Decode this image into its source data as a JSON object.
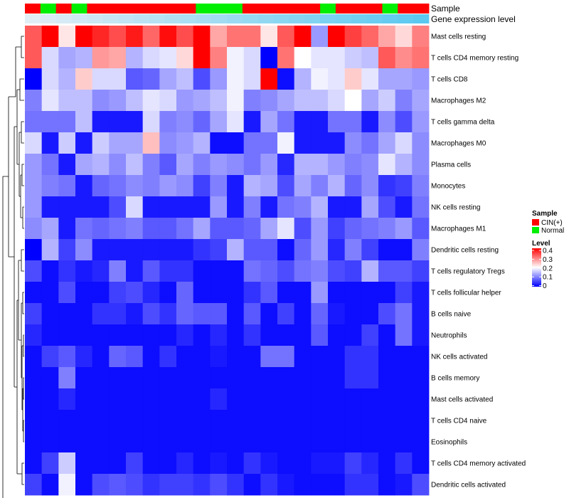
{
  "chart_data": {
    "type": "heatmap",
    "title": "",
    "colors": {
      "low": "#0000ff",
      "mid": "#ffffff",
      "high": "#ff0000",
      "sample_cin": "#ff0000",
      "sample_normal": "#00ee00",
      "gene_expr": "#5bc8f0"
    },
    "annotation_labels": {
      "sample": "Sample",
      "gene_expression": "Gene expression level"
    },
    "sample_groups": [
      "CIN(+)",
      "Normal",
      "CIN(+)",
      "Normal",
      "CIN(+)",
      "CIN(+)",
      "CIN(+)",
      "CIN(+)",
      "CIN(+)",
      "CIN(+)",
      "CIN(+)",
      "Normal",
      "Normal",
      "Normal",
      "CIN(+)",
      "CIN(+)",
      "CIN(+)",
      "CIN(+)",
      "CIN(+)",
      "Normal",
      "CIN(+)",
      "CIN(+)",
      "CIN(+)",
      "Normal",
      "CIN(+)",
      "CIN(+)"
    ],
    "gene_expression_level": [
      0.0,
      0.04,
      0.08,
      0.12,
      0.16,
      0.2,
      0.24,
      0.28,
      0.32,
      0.36,
      0.4,
      0.44,
      0.48,
      0.52,
      0.56,
      0.6,
      0.64,
      0.68,
      0.72,
      0.76,
      0.8,
      0.84,
      0.88,
      0.92,
      0.96,
      1.0
    ],
    "rows": [
      "Mast cells resting",
      "T cells CD4 memory resting",
      "T cells CD8",
      "Macrophages M2",
      "T cells gamma delta",
      "Macrophages M0",
      "Plasma cells",
      "Monocytes",
      "NK cells resting",
      "Macrophages M1",
      "Dendritic cells resting",
      "T cells regulatory  Tregs",
      "T cells follicular helper",
      "B cells naive",
      "Neutrophils",
      "NK cells activated",
      "B cells memory",
      "Mast cells activated",
      "T cells CD4 naive",
      "Eosinophils",
      "T cells CD4 memory activated",
      "Dendritic cells activated"
    ],
    "values": [
      [
        0.33,
        0.4,
        0.22,
        0.4,
        0.37,
        0.34,
        0.38,
        0.32,
        0.39,
        0.34,
        0.4,
        0.27,
        0.31,
        0.31,
        0.22,
        0.33,
        0.4,
        0.12,
        0.4,
        0.35,
        0.32,
        0.27,
        0.23,
        0.3
      ],
      [
        0.33,
        0.17,
        0.13,
        0.14,
        0.28,
        0.27,
        0.14,
        0.17,
        0.18,
        0.23,
        0.4,
        0.3,
        0.19,
        0.17,
        0.0,
        0.31,
        0.2,
        0.18,
        0.18,
        0.16,
        0.15,
        0.33,
        0.29,
        0.31
      ],
      [
        0.0,
        0.17,
        0.14,
        0.24,
        0.17,
        0.17,
        0.07,
        0.08,
        0.13,
        0.15,
        0.06,
        0.12,
        0.19,
        0.17,
        0.4,
        0.01,
        0.14,
        0.19,
        0.18,
        0.24,
        0.18,
        0.13,
        0.13,
        0.12
      ],
      [
        0.1,
        0.18,
        0.15,
        0.15,
        0.11,
        0.12,
        0.15,
        0.18,
        0.17,
        0.12,
        0.13,
        0.15,
        0.19,
        0.1,
        0.11,
        0.13,
        0.15,
        0.15,
        0.17,
        0.2,
        0.13,
        0.16,
        0.1,
        0.13
      ],
      [
        0.09,
        0.09,
        0.09,
        0.15,
        0.02,
        0.02,
        0.02,
        0.17,
        0.1,
        0.11,
        0.08,
        0.13,
        0.18,
        0.02,
        0.13,
        0.09,
        0.02,
        0.02,
        0.09,
        0.09,
        0.02,
        0.11,
        0.06,
        0.12
      ],
      [
        0.17,
        0.02,
        0.16,
        0.02,
        0.16,
        0.13,
        0.13,
        0.25,
        0.11,
        0.12,
        0.14,
        0.01,
        0.01,
        0.09,
        0.09,
        0.19,
        0.02,
        0.02,
        0.02,
        0.11,
        0.09,
        0.13,
        0.17,
        0.11
      ],
      [
        0.12,
        0.09,
        0.02,
        0.13,
        0.14,
        0.11,
        0.15,
        0.1,
        0.07,
        0.13,
        0.1,
        0.12,
        0.11,
        0.09,
        0.12,
        0.03,
        0.14,
        0.14,
        0.12,
        0.1,
        0.11,
        0.18,
        0.14,
        0.11
      ],
      [
        0.12,
        0.1,
        0.09,
        0.02,
        0.08,
        0.09,
        0.11,
        0.1,
        0.12,
        0.11,
        0.05,
        0.1,
        0.02,
        0.14,
        0.13,
        0.06,
        0.13,
        0.1,
        0.14,
        0.08,
        0.11,
        0.04,
        0.05,
        0.1
      ],
      [
        0.12,
        0.02,
        0.02,
        0.02,
        0.02,
        0.06,
        0.17,
        0.02,
        0.02,
        0.02,
        0.02,
        0.12,
        0.02,
        0.1,
        0.02,
        0.09,
        0.1,
        0.14,
        0.02,
        0.02,
        0.13,
        0.06,
        0.02,
        0.09
      ],
      [
        0.11,
        0.13,
        0.02,
        0.09,
        0.08,
        0.09,
        0.1,
        0.07,
        0.07,
        0.09,
        0.13,
        0.07,
        0.07,
        0.08,
        0.13,
        0.18,
        0.06,
        0.12,
        0.05,
        0.08,
        0.09,
        0.1,
        0.12,
        0.07
      ],
      [
        0.0,
        0.14,
        0.05,
        0.11,
        0.02,
        0.02,
        0.02,
        0.02,
        0.02,
        0.02,
        0.04,
        0.05,
        0.14,
        0.07,
        0.07,
        0.01,
        0.08,
        0.12,
        0.03,
        0.1,
        0.05,
        0.01,
        0.01,
        0.1
      ],
      [
        0.06,
        0.01,
        0.04,
        0.02,
        0.03,
        0.1,
        0.02,
        0.07,
        0.04,
        0.04,
        0.01,
        0.01,
        0.01,
        0.09,
        0.08,
        0.06,
        0.09,
        0.1,
        0.06,
        0.05,
        0.14,
        0.07,
        0.07,
        0.05
      ],
      [
        0.01,
        0.01,
        0.06,
        0.01,
        0.01,
        0.05,
        0.06,
        0.03,
        0.01,
        0.08,
        0.01,
        0.01,
        0.01,
        0.04,
        0.07,
        0.01,
        0.01,
        0.12,
        0.01,
        0.01,
        0.01,
        0.01,
        0.05,
        0.02
      ],
      [
        0.05,
        0.01,
        0.01,
        0.01,
        0.04,
        0.04,
        0.02,
        0.06,
        0.04,
        0.08,
        0.07,
        0.07,
        0.01,
        0.07,
        0.01,
        0.05,
        0.01,
        0.08,
        0.02,
        0.01,
        0.01,
        0.06,
        0.09,
        0.02
      ],
      [
        0.03,
        0.01,
        0.01,
        0.01,
        0.01,
        0.01,
        0.01,
        0.01,
        0.01,
        0.03,
        0.01,
        0.03,
        0.01,
        0.04,
        0.01,
        0.01,
        0.01,
        0.07,
        0.01,
        0.01,
        0.05,
        0.01,
        0.09,
        0.02
      ],
      [
        0.01,
        0.05,
        0.07,
        0.03,
        0.01,
        0.08,
        0.07,
        0.01,
        0.04,
        0.01,
        0.01,
        0.02,
        0.01,
        0.01,
        0.09,
        0.09,
        0.01,
        0.01,
        0.01,
        0.04,
        0.04,
        0.01,
        0.01,
        0.01
      ],
      [
        0.01,
        0.01,
        0.1,
        0.01,
        0.01,
        0.01,
        0.01,
        0.01,
        0.01,
        0.01,
        0.01,
        0.01,
        0.01,
        0.01,
        0.01,
        0.01,
        0.01,
        0.01,
        0.01,
        0.04,
        0.04,
        0.01,
        0.01,
        0.01
      ],
      [
        0.01,
        0.01,
        0.03,
        0.01,
        0.01,
        0.01,
        0.01,
        0.01,
        0.01,
        0.01,
        0.01,
        0.03,
        0.01,
        0.01,
        0.01,
        0.01,
        0.01,
        0.01,
        0.01,
        0.01,
        0.01,
        0.01,
        0.01,
        0.01
      ],
      [
        0.01,
        0.01,
        0.01,
        0.01,
        0.01,
        0.01,
        0.01,
        0.01,
        0.01,
        0.01,
        0.01,
        0.01,
        0.01,
        0.01,
        0.01,
        0.01,
        0.01,
        0.01,
        0.01,
        0.01,
        0.01,
        0.01,
        0.01,
        0.01
      ],
      [
        0.01,
        0.01,
        0.01,
        0.01,
        0.01,
        0.01,
        0.01,
        0.01,
        0.01,
        0.01,
        0.01,
        0.01,
        0.01,
        0.01,
        0.01,
        0.01,
        0.01,
        0.01,
        0.01,
        0.01,
        0.01,
        0.01,
        0.01,
        0.01
      ],
      [
        0.01,
        0.05,
        0.16,
        0.01,
        0.01,
        0.01,
        0.05,
        0.01,
        0.01,
        0.03,
        0.01,
        0.02,
        0.01,
        0.04,
        0.02,
        0.01,
        0.01,
        0.02,
        0.02,
        0.05,
        0.03,
        0.01,
        0.04,
        0.01
      ],
      [
        0.05,
        0.01,
        0.19,
        0.01,
        0.06,
        0.07,
        0.06,
        0.04,
        0.05,
        0.05,
        0.04,
        0.06,
        0.04,
        0.01,
        0.04,
        0.02,
        0.01,
        0.01,
        0.01,
        0.04,
        0.04,
        0.01,
        0.02,
        0.06
      ]
    ],
    "legend": {
      "sample_title": "Sample",
      "sample_items": [
        {
          "label": "CIN(+)",
          "color": "#ff0000"
        },
        {
          "label": "Normal",
          "color": "#00ee00"
        }
      ],
      "level_title": "Level",
      "level_ticks": [
        "0.4",
        "0.3",
        "0.2",
        "0.1",
        "0"
      ],
      "level_range": [
        0,
        0.4
      ],
      "placement": "right"
    }
  }
}
